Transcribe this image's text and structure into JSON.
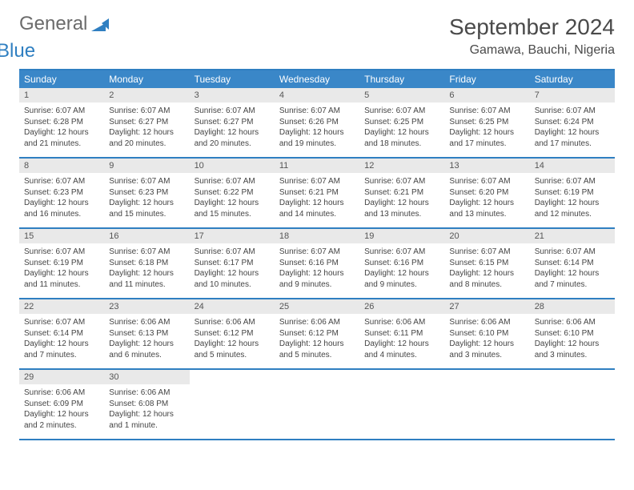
{
  "brand": {
    "word1": "General",
    "word2": "Blue",
    "word1_color": "#6b6b6b",
    "word2_color": "#2f7fc1",
    "mark_color": "#2f7fc1"
  },
  "header": {
    "month_title": "September 2024",
    "location": "Gamawa, Bauchi, Nigeria"
  },
  "colors": {
    "header_bar": "#3a87c8",
    "rule": "#2f7fc1",
    "daynum_bg": "#e9e9e9",
    "text": "#444444",
    "bg": "#ffffff"
  },
  "typography": {
    "title_fontsize": 28,
    "location_fontsize": 16,
    "dow_fontsize": 12,
    "daynum_fontsize": 11,
    "body_fontsize": 10
  },
  "day_names": [
    "Sunday",
    "Monday",
    "Tuesday",
    "Wednesday",
    "Thursday",
    "Friday",
    "Saturday"
  ],
  "weeks": [
    [
      {
        "n": "1",
        "sr": "Sunrise: 6:07 AM",
        "ss": "Sunset: 6:28 PM",
        "d1": "Daylight: 12 hours",
        "d2": "and 21 minutes."
      },
      {
        "n": "2",
        "sr": "Sunrise: 6:07 AM",
        "ss": "Sunset: 6:27 PM",
        "d1": "Daylight: 12 hours",
        "d2": "and 20 minutes."
      },
      {
        "n": "3",
        "sr": "Sunrise: 6:07 AM",
        "ss": "Sunset: 6:27 PM",
        "d1": "Daylight: 12 hours",
        "d2": "and 20 minutes."
      },
      {
        "n": "4",
        "sr": "Sunrise: 6:07 AM",
        "ss": "Sunset: 6:26 PM",
        "d1": "Daylight: 12 hours",
        "d2": "and 19 minutes."
      },
      {
        "n": "5",
        "sr": "Sunrise: 6:07 AM",
        "ss": "Sunset: 6:25 PM",
        "d1": "Daylight: 12 hours",
        "d2": "and 18 minutes."
      },
      {
        "n": "6",
        "sr": "Sunrise: 6:07 AM",
        "ss": "Sunset: 6:25 PM",
        "d1": "Daylight: 12 hours",
        "d2": "and 17 minutes."
      },
      {
        "n": "7",
        "sr": "Sunrise: 6:07 AM",
        "ss": "Sunset: 6:24 PM",
        "d1": "Daylight: 12 hours",
        "d2": "and 17 minutes."
      }
    ],
    [
      {
        "n": "8",
        "sr": "Sunrise: 6:07 AM",
        "ss": "Sunset: 6:23 PM",
        "d1": "Daylight: 12 hours",
        "d2": "and 16 minutes."
      },
      {
        "n": "9",
        "sr": "Sunrise: 6:07 AM",
        "ss": "Sunset: 6:23 PM",
        "d1": "Daylight: 12 hours",
        "d2": "and 15 minutes."
      },
      {
        "n": "10",
        "sr": "Sunrise: 6:07 AM",
        "ss": "Sunset: 6:22 PM",
        "d1": "Daylight: 12 hours",
        "d2": "and 15 minutes."
      },
      {
        "n": "11",
        "sr": "Sunrise: 6:07 AM",
        "ss": "Sunset: 6:21 PM",
        "d1": "Daylight: 12 hours",
        "d2": "and 14 minutes."
      },
      {
        "n": "12",
        "sr": "Sunrise: 6:07 AM",
        "ss": "Sunset: 6:21 PM",
        "d1": "Daylight: 12 hours",
        "d2": "and 13 minutes."
      },
      {
        "n": "13",
        "sr": "Sunrise: 6:07 AM",
        "ss": "Sunset: 6:20 PM",
        "d1": "Daylight: 12 hours",
        "d2": "and 13 minutes."
      },
      {
        "n": "14",
        "sr": "Sunrise: 6:07 AM",
        "ss": "Sunset: 6:19 PM",
        "d1": "Daylight: 12 hours",
        "d2": "and 12 minutes."
      }
    ],
    [
      {
        "n": "15",
        "sr": "Sunrise: 6:07 AM",
        "ss": "Sunset: 6:19 PM",
        "d1": "Daylight: 12 hours",
        "d2": "and 11 minutes."
      },
      {
        "n": "16",
        "sr": "Sunrise: 6:07 AM",
        "ss": "Sunset: 6:18 PM",
        "d1": "Daylight: 12 hours",
        "d2": "and 11 minutes."
      },
      {
        "n": "17",
        "sr": "Sunrise: 6:07 AM",
        "ss": "Sunset: 6:17 PM",
        "d1": "Daylight: 12 hours",
        "d2": "and 10 minutes."
      },
      {
        "n": "18",
        "sr": "Sunrise: 6:07 AM",
        "ss": "Sunset: 6:16 PM",
        "d1": "Daylight: 12 hours",
        "d2": "and 9 minutes."
      },
      {
        "n": "19",
        "sr": "Sunrise: 6:07 AM",
        "ss": "Sunset: 6:16 PM",
        "d1": "Daylight: 12 hours",
        "d2": "and 9 minutes."
      },
      {
        "n": "20",
        "sr": "Sunrise: 6:07 AM",
        "ss": "Sunset: 6:15 PM",
        "d1": "Daylight: 12 hours",
        "d2": "and 8 minutes."
      },
      {
        "n": "21",
        "sr": "Sunrise: 6:07 AM",
        "ss": "Sunset: 6:14 PM",
        "d1": "Daylight: 12 hours",
        "d2": "and 7 minutes."
      }
    ],
    [
      {
        "n": "22",
        "sr": "Sunrise: 6:07 AM",
        "ss": "Sunset: 6:14 PM",
        "d1": "Daylight: 12 hours",
        "d2": "and 7 minutes."
      },
      {
        "n": "23",
        "sr": "Sunrise: 6:06 AM",
        "ss": "Sunset: 6:13 PM",
        "d1": "Daylight: 12 hours",
        "d2": "and 6 minutes."
      },
      {
        "n": "24",
        "sr": "Sunrise: 6:06 AM",
        "ss": "Sunset: 6:12 PM",
        "d1": "Daylight: 12 hours",
        "d2": "and 5 minutes."
      },
      {
        "n": "25",
        "sr": "Sunrise: 6:06 AM",
        "ss": "Sunset: 6:12 PM",
        "d1": "Daylight: 12 hours",
        "d2": "and 5 minutes."
      },
      {
        "n": "26",
        "sr": "Sunrise: 6:06 AM",
        "ss": "Sunset: 6:11 PM",
        "d1": "Daylight: 12 hours",
        "d2": "and 4 minutes."
      },
      {
        "n": "27",
        "sr": "Sunrise: 6:06 AM",
        "ss": "Sunset: 6:10 PM",
        "d1": "Daylight: 12 hours",
        "d2": "and 3 minutes."
      },
      {
        "n": "28",
        "sr": "Sunrise: 6:06 AM",
        "ss": "Sunset: 6:10 PM",
        "d1": "Daylight: 12 hours",
        "d2": "and 3 minutes."
      }
    ],
    [
      {
        "n": "29",
        "sr": "Sunrise: 6:06 AM",
        "ss": "Sunset: 6:09 PM",
        "d1": "Daylight: 12 hours",
        "d2": "and 2 minutes."
      },
      {
        "n": "30",
        "sr": "Sunrise: 6:06 AM",
        "ss": "Sunset: 6:08 PM",
        "d1": "Daylight: 12 hours",
        "d2": "and 1 minute."
      },
      {
        "n": "",
        "sr": "",
        "ss": "",
        "d1": "",
        "d2": ""
      },
      {
        "n": "",
        "sr": "",
        "ss": "",
        "d1": "",
        "d2": ""
      },
      {
        "n": "",
        "sr": "",
        "ss": "",
        "d1": "",
        "d2": ""
      },
      {
        "n": "",
        "sr": "",
        "ss": "",
        "d1": "",
        "d2": ""
      },
      {
        "n": "",
        "sr": "",
        "ss": "",
        "d1": "",
        "d2": ""
      }
    ]
  ]
}
